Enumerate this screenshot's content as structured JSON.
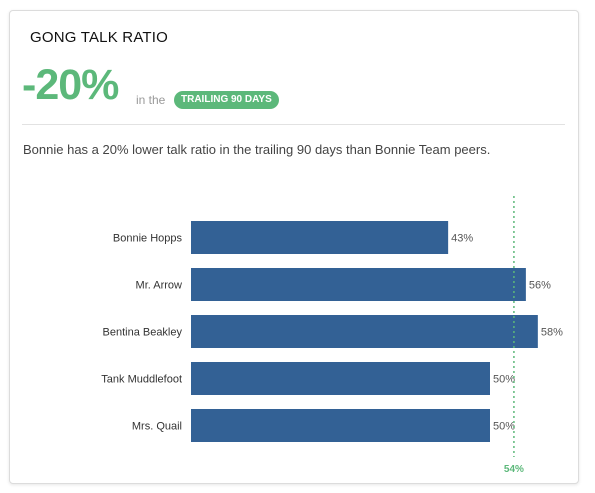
{
  "widget": {
    "title": "GONG TALK RATIO",
    "big_stat": "-20%",
    "in_the": "in the",
    "badge": "TRAILING 90 DAYS",
    "summary": "Bonnie has a 20% lower talk ratio in the trailing 90 days than Bonnie Team peers."
  },
  "colors": {
    "accent_green": "#5cb87a",
    "bar_blue": "#336195"
  },
  "chart_data": {
    "type": "bar",
    "orientation": "horizontal",
    "categories": [
      "Bonnie Hopps",
      "Mr. Arrow",
      "Bentina Beakley",
      "Tank Muddlefoot",
      "Mrs. Quail"
    ],
    "values": [
      43,
      56,
      58,
      50,
      50
    ],
    "data_labels": [
      "43%",
      "56%",
      "58%",
      "50%",
      "50%"
    ],
    "reference_line": {
      "value": 54,
      "label": "54%"
    },
    "xlim": [
      0,
      100
    ],
    "grid": false,
    "legend": "none"
  }
}
